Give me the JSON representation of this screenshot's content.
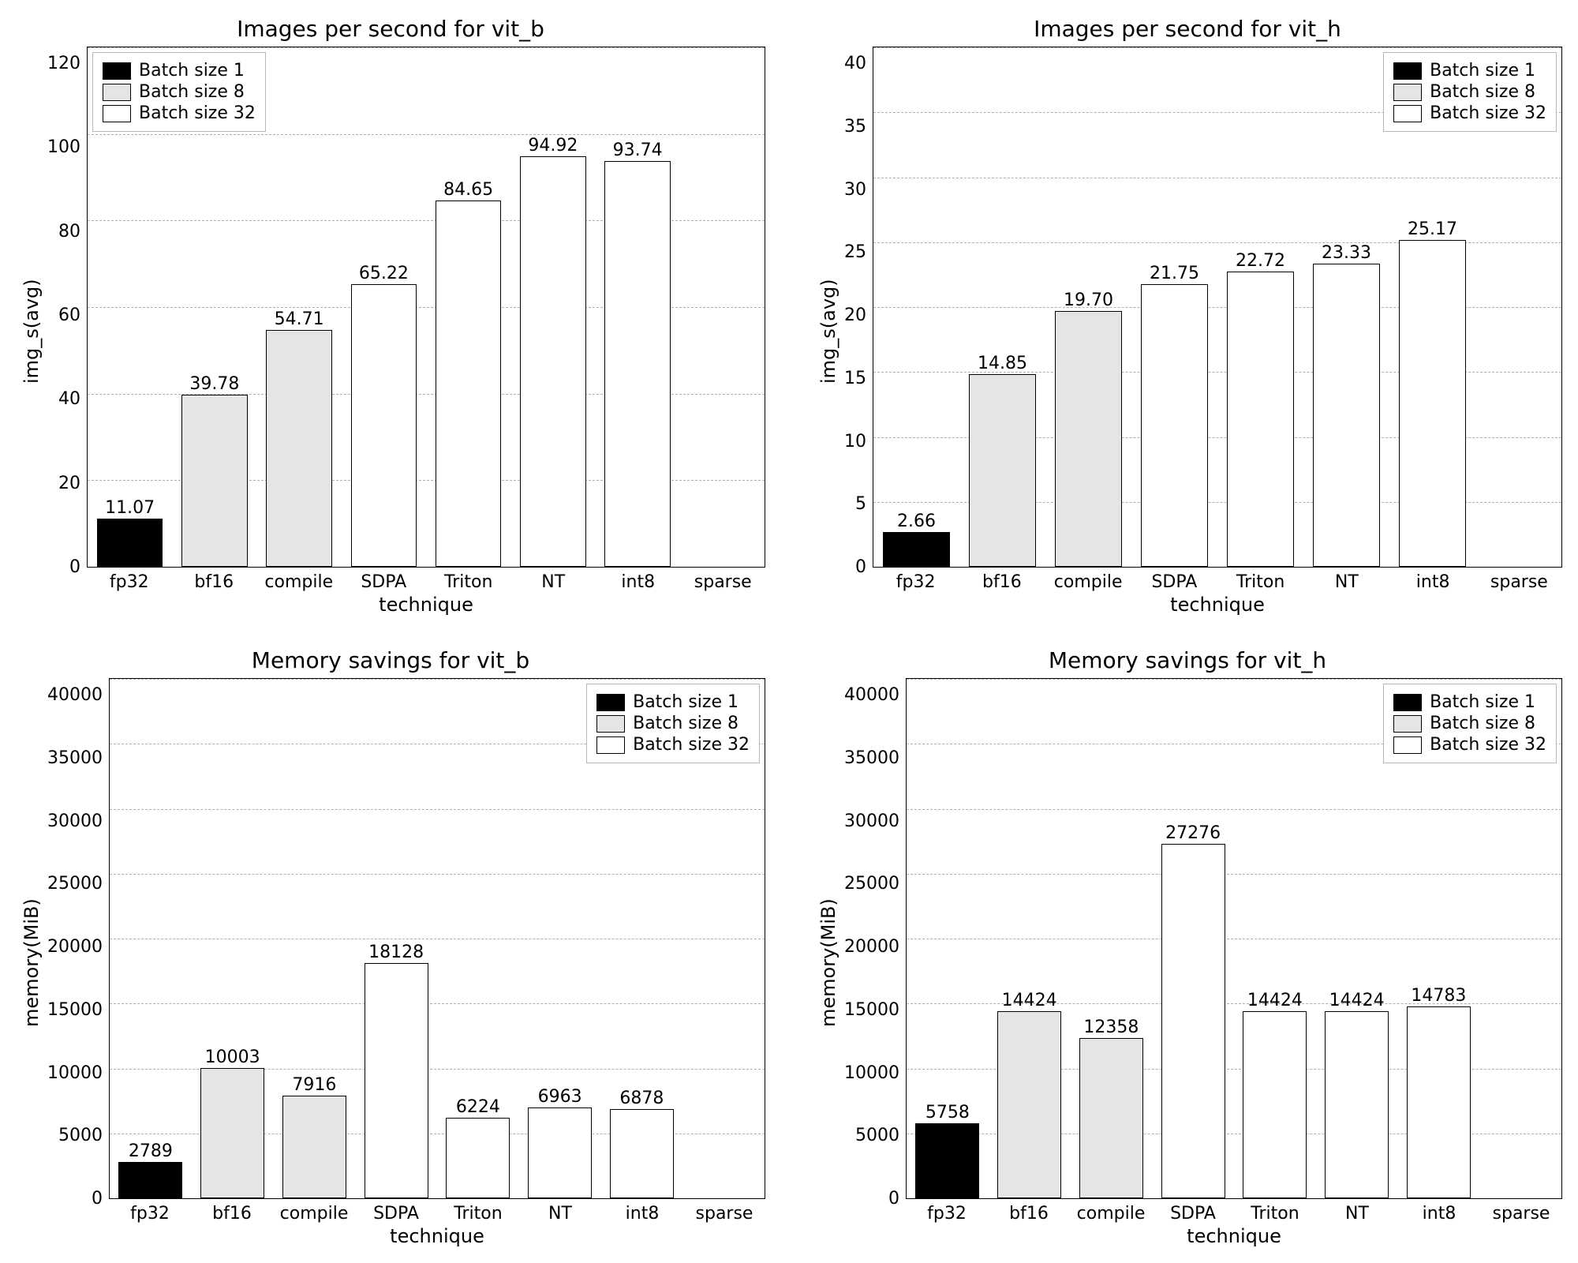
{
  "global": {
    "background_color": "#ffffff",
    "grid_color": "#b0b0b0",
    "bar_border": "#000000",
    "font_family": "DejaVu Sans",
    "title_fontsize": 28,
    "label_fontsize": 24,
    "tick_fontsize": 22,
    "bar_label_fontsize": 22,
    "bar_width": 0.78,
    "grid_dash": "dashed",
    "legend_border": "#b8b8b8",
    "legend_bg": "#ffffff",
    "categories": [
      "fp32",
      "bf16",
      "compile",
      "SDPA",
      "Triton",
      "NT",
      "int8",
      "sparse"
    ],
    "xlabel": "technique",
    "series_colors": {
      "batch1": "#000000",
      "batch8": "#e5e5e5",
      "batch32": "#ffffff"
    },
    "legend_labels": {
      "batch1": "Batch size 1",
      "batch8": "Batch size 8",
      "batch32": "Batch size 32"
    }
  },
  "panels": [
    {
      "id": "vit_b_ips",
      "title": "Images per second for vit_b",
      "ylabel": "img_s(avg)",
      "ylim": [
        0,
        120
      ],
      "ytick_step": 20,
      "legend_pos": "top-left",
      "label_decimals": 2,
      "bars": [
        {
          "value": 11.07,
          "series": "batch1"
        },
        {
          "value": 39.78,
          "series": "batch8"
        },
        {
          "value": 54.71,
          "series": "batch8"
        },
        {
          "value": 65.22,
          "series": "batch32"
        },
        {
          "value": 84.65,
          "series": "batch32"
        },
        {
          "value": 94.92,
          "series": "batch32"
        },
        {
          "value": 93.74,
          "series": "batch32"
        },
        {
          "value": null,
          "series": null
        }
      ]
    },
    {
      "id": "vit_h_ips",
      "title": "Images per second for vit_h",
      "ylabel": "img_s(avg)",
      "ylim": [
        0,
        40
      ],
      "ytick_step": 5,
      "legend_pos": "top-right",
      "label_decimals": 2,
      "bars": [
        {
          "value": 2.66,
          "series": "batch1"
        },
        {
          "value": 14.85,
          "series": "batch8"
        },
        {
          "value": 19.7,
          "series": "batch8"
        },
        {
          "value": 21.75,
          "series": "batch32"
        },
        {
          "value": 22.72,
          "series": "batch32"
        },
        {
          "value": 23.33,
          "series": "batch32"
        },
        {
          "value": 25.17,
          "series": "batch32"
        },
        {
          "value": null,
          "series": null
        }
      ]
    },
    {
      "id": "vit_b_mem",
      "title": "Memory savings for vit_b",
      "ylabel": "memory(MiB)",
      "ylim": [
        0,
        40000
      ],
      "ytick_step": 5000,
      "legend_pos": "top-right",
      "label_decimals": 0,
      "bars": [
        {
          "value": 2789,
          "series": "batch1"
        },
        {
          "value": 10003,
          "series": "batch8"
        },
        {
          "value": 7916,
          "series": "batch8"
        },
        {
          "value": 18128,
          "series": "batch32"
        },
        {
          "value": 6224,
          "series": "batch32"
        },
        {
          "value": 6963,
          "series": "batch32"
        },
        {
          "value": 6878,
          "series": "batch32"
        },
        {
          "value": null,
          "series": null
        }
      ]
    },
    {
      "id": "vit_h_mem",
      "title": "Memory savings for vit_h",
      "ylabel": "memory(MiB)",
      "ylim": [
        0,
        40000
      ],
      "ytick_step": 5000,
      "legend_pos": "top-right",
      "label_decimals": 0,
      "bars": [
        {
          "value": 5758,
          "series": "batch1"
        },
        {
          "value": 14424,
          "series": "batch8"
        },
        {
          "value": 12358,
          "series": "batch8"
        },
        {
          "value": 27276,
          "series": "batch32"
        },
        {
          "value": 14424,
          "series": "batch32"
        },
        {
          "value": 14424,
          "series": "batch32"
        },
        {
          "value": 14783,
          "series": "batch32"
        },
        {
          "value": null,
          "series": null
        }
      ]
    }
  ]
}
